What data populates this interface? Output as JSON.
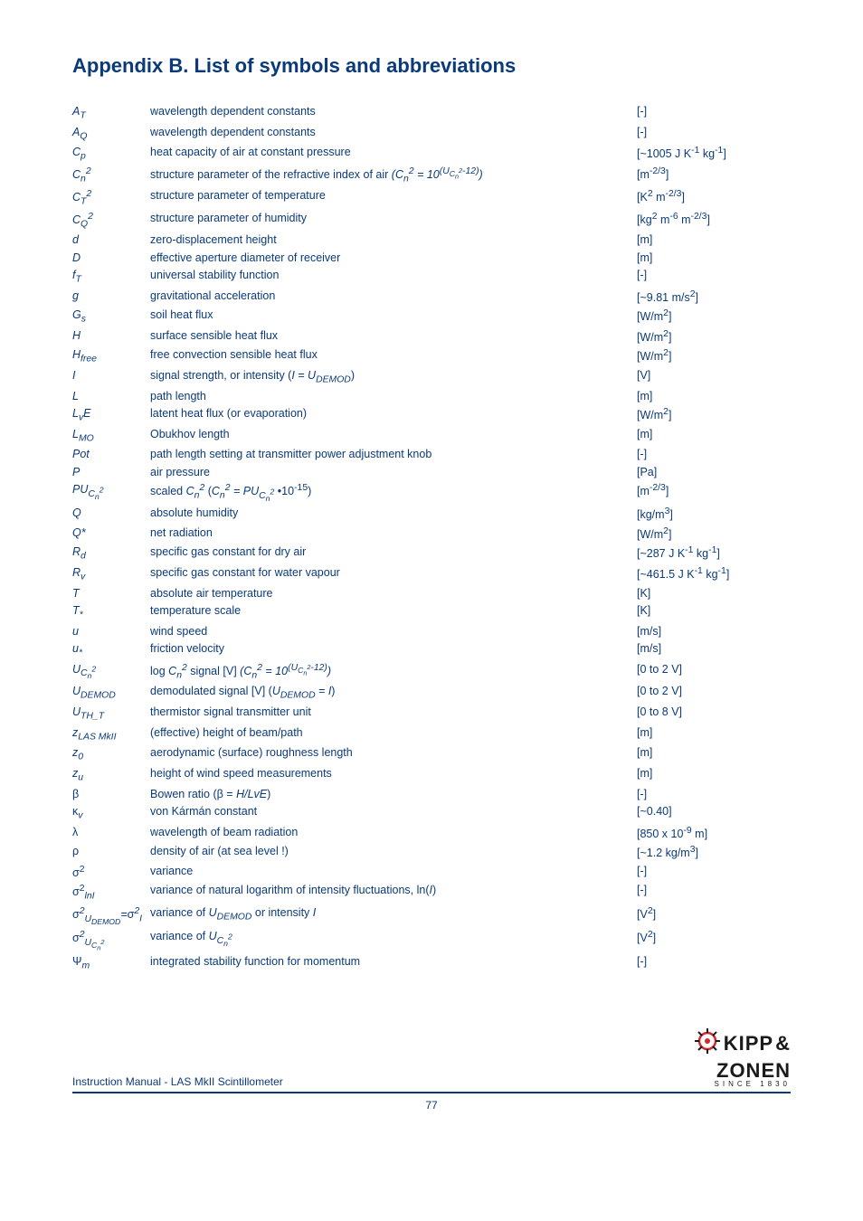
{
  "colors": {
    "text": "#0a3a7a",
    "logo_red": "#d62828",
    "logo_dark": "#1a1a1a"
  },
  "title": "Appendix B. List of symbols and abbreviations",
  "footer_text": "Instruction Manual - LAS MkII Scintillometer",
  "page_number": "77",
  "logo": {
    "line1": "KIPP",
    "amp": "&",
    "line2": "ZONEN",
    "line3": "SINCE 1830"
  },
  "rows": [
    {
      "sym": "A<sub>T</sub>",
      "desc": "wavelength dependent constants",
      "unit": "[-]"
    },
    {
      "sym": "A<sub>Q</sub>",
      "desc": "wavelength dependent constants",
      "unit": "[-]"
    },
    {
      "sym": "C<sub>p</sub>",
      "desc": "heat capacity of air at constant pressure",
      "unit": "[~1005 J K<sup>-1</sup> kg<sup>-1</sup>]"
    },
    {
      "sym": "C<sub>n</sub><sup>2</sup>",
      "desc": "structure parameter of the refractive index of air <i>(C<sub>n</sub><sup>2</sup> = 10<sup>(U<sub>C<sub>n</sub><sup>2</sup></sub>-12)</sup>)</i>",
      "unit": "[m<sup>-2/3</sup>]"
    },
    {
      "sym": "C<sub>T</sub><sup>2</sup>",
      "desc": "structure parameter of temperature",
      "unit": "[K<sup>2</sup> m<sup>-2/3</sup>]"
    },
    {
      "sym": "C<sub>Q</sub><sup>2</sup>",
      "desc": "structure parameter of humidity",
      "unit": "[kg<sup>2</sup> m<sup>-6</sup> m<sup>-2/3</sup>]"
    },
    {
      "sym": "d",
      "desc": "zero-displacement height",
      "unit": "[m]"
    },
    {
      "sym": "D",
      "desc": "effective aperture diameter of receiver",
      "unit": "[m]"
    },
    {
      "sym": "f<sub>T</sub>",
      "desc": "universal stability function",
      "unit": "[-]"
    },
    {
      "sym": "g",
      "desc": "gravitational acceleration",
      "unit": "[~9.81 m/s<sup>2</sup>]"
    },
    {
      "sym": "G<sub>s</sub>",
      "desc": "soil heat flux",
      "unit": "[W/m<sup>2</sup>]"
    },
    {
      "sym": "H",
      "desc": "surface sensible heat flux",
      "unit": "[W/m<sup>2</sup>]"
    },
    {
      "sym": "H<sub>free</sub>",
      "desc": "free convection sensible heat flux",
      "unit": "[W/m<sup>2</sup>]"
    },
    {
      "sym": "I",
      "desc": "signal strength, or intensity (<i>I = U<sub>DEMOD</sub></i>)",
      "unit": "[V]"
    },
    {
      "sym": "L",
      "desc": "path length",
      "unit": "[m]"
    },
    {
      "sym": "L<sub>v</sub>E",
      "desc": "latent heat flux (or evaporation)",
      "unit": "[W/m<sup>2</sup>]"
    },
    {
      "sym": "L<sub>MO</sub>",
      "desc": "Obukhov length",
      "unit": "[m]"
    },
    {
      "sym": "Pot",
      "desc": "path length setting at transmitter power adjustment knob",
      "unit": "[-]"
    },
    {
      "sym": "P",
      "desc": "air pressure",
      "unit": "[Pa]"
    },
    {
      "sym": "PU<sub>C<sub>n</sub><sup>2</sup></sub>",
      "desc": "scaled <i>C<sub>n</sub><sup>2</sup></i> (<i>C<sub>n</sub><sup>2</sup> = PU<sub>C<sub>n</sub><sup>2</sup></sub></i> •10<sup>-15</sup>)",
      "unit": "[m<sup>-2/3</sup>]"
    },
    {
      "sym": "Q",
      "desc": "absolute humidity",
      "unit": "[kg/m<sup>3</sup>]"
    },
    {
      "sym": "Q*",
      "desc": "net radiation",
      "unit": "[W/m<sup>2</sup>]"
    },
    {
      "sym": "R<sub>d</sub>",
      "desc": "specific gas constant for dry air",
      "unit": "[~287 J K<sup>-1</sup> kg<sup>-1</sup>]"
    },
    {
      "sym": "R<sub>v</sub>",
      "desc": "specific gas constant for water vapour",
      "unit": "[~461.5 J K<sup>-1</sup> kg<sup>-1</sup>]"
    },
    {
      "sym": "T",
      "desc": "absolute air temperature",
      "unit": "[K]"
    },
    {
      "sym": "T<sub>*</sub>",
      "desc": "temperature scale",
      "unit": "[K]"
    },
    {
      "sym": "u",
      "desc": "wind speed",
      "unit": "[m/s]"
    },
    {
      "sym": "u<sub>*</sub>",
      "desc": "friction velocity",
      "unit": "[m/s]"
    },
    {
      "sym": "U<sub>C<sub>n</sub><sup>2</sup></sub>",
      "desc": "log <i>C<sub>n</sub><sup>2</sup></i> signal [V] <i>(C<sub>n</sub><sup>2</sup> = 10<sup>(U<sub>C<sub>n</sub><sup>2</sup></sub>-12)</sup>)</i>",
      "unit": "[0 to 2 V]"
    },
    {
      "sym": "U<sub>DEMOD</sub>",
      "desc": "demodulated signal [V] (<i>U<sub>DEMOD</sub> = I</i>)",
      "unit": "[0 to 2 V]"
    },
    {
      "sym": "U<sub>TH_T</sub>",
      "desc": "thermistor signal transmitter unit",
      "unit": "[0 to 8 V]"
    },
    {
      "sym": "z<sub>LAS MkII</sub>",
      "desc": "(effective) height of beam/path",
      "unit": "[m]"
    },
    {
      "sym": "z<sub>0</sub>",
      "desc": "aerodynamic (surface) roughness length",
      "unit": "[m]"
    },
    {
      "sym": "z<sub>u</sub>",
      "desc": "height of wind speed measurements",
      "unit": "[m]"
    },
    {
      "sym": "<span style='font-style:normal'>β</span>",
      "desc": "Bowen ratio (β = <i>H/LvE</i>)",
      "unit": "[-]"
    },
    {
      "sym": "<span style='font-style:normal'>κ</span><sub>v</sub>",
      "desc": "von Kármán constant",
      "unit": "[~0.40]"
    },
    {
      "sym": "<span style='font-style:normal'>λ</span>",
      "desc": "wavelength of beam radiation",
      "unit": "[850 x 10<sup>-9</sup> m]"
    },
    {
      "sym": "<span style='font-style:normal'>ρ</span>",
      "desc": "density of air (at sea level !)",
      "unit": "[~1.2 kg/m<sup>3</sup>]"
    },
    {
      "sym": "<span style='font-style:normal'>σ<sup>2</sup></span>",
      "desc": "variance",
      "unit": "[-]"
    },
    {
      "sym": "<span style='font-style:normal'>σ<sup>2</sup></span><sub>ln<i>I</i></sub>",
      "desc": "variance of natural logarithm of intensity fluctuations, ln(<i>I</i>)",
      "unit": "[-]"
    },
    {
      "sym": "<span style='font-style:normal'>σ</span><sup>2</sup><sub>U<sub>DEMOD</sub></sub>=<span style='font-style:normal'>σ</span><sup>2</sup><sub>I</sub>",
      "desc": "variance of <i>U<sub>DEMOD</sub></i> or intensity <i>I</i>",
      "unit": "[V<sup>2</sup>]"
    },
    {
      "sym": "<span style='font-style:normal'>σ</span><sup>2</sup><sub>U<sub>C<sub>n</sub><sup>2</sup></sub></sub>",
      "desc": "variance of <i>U<sub>C<sub>n</sub><sup>2</sup></sub></i>",
      "unit": "[V<sup>2</sup>]"
    },
    {
      "sym": "<span style='font-style:normal'>Ψ</span><sub>m</sub>",
      "desc": "integrated stability function for momentum",
      "unit": "[-]"
    }
  ]
}
